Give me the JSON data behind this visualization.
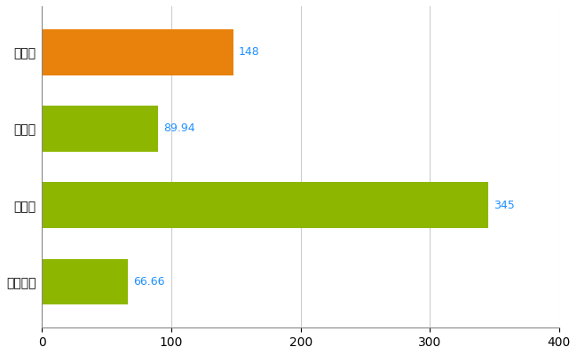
{
  "categories": [
    "全国平均",
    "県最大",
    "県平均",
    "中村区"
  ],
  "values": [
    66.66,
    345,
    89.94,
    148
  ],
  "bar_colors": [
    "#8DB600",
    "#8DB600",
    "#8DB600",
    "#E8820C"
  ],
  "value_labels": [
    "66.66",
    "345",
    "89.94",
    "148"
  ],
  "value_label_color": "#1E90FF",
  "xlim": [
    0,
    400
  ],
  "xticks": [
    0,
    100,
    200,
    300,
    400
  ],
  "grid_color": "#CCCCCC",
  "background_color": "#FFFFFF",
  "bar_height": 0.6,
  "figsize": [
    6.5,
    4.0
  ],
  "dpi": 100,
  "label_fontsize": 10,
  "value_fontsize": 9
}
